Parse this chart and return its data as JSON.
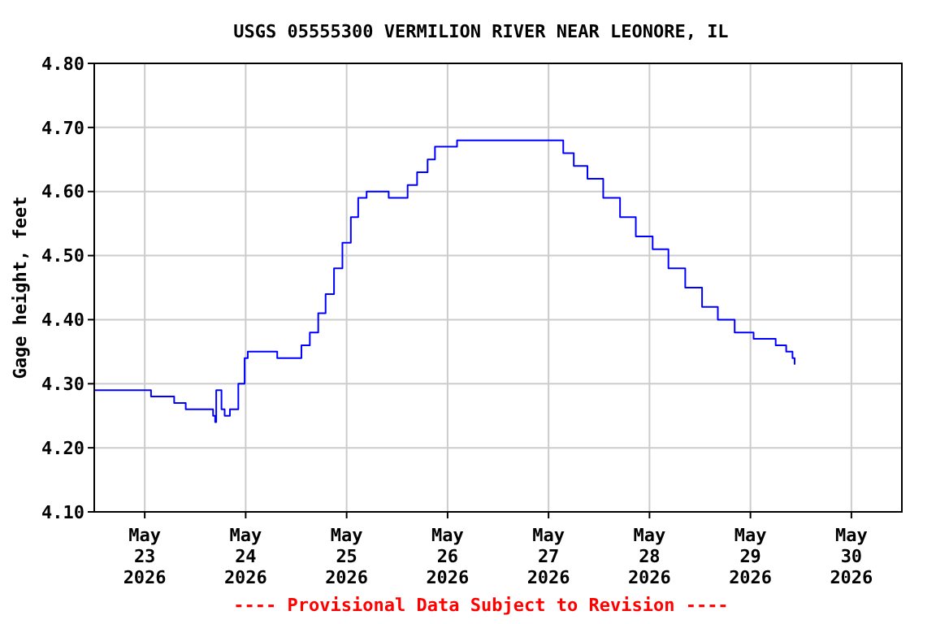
{
  "chart_data": {
    "type": "step",
    "title": "USGS 05555300 VERMILION RIVER NEAR LEONORE, IL",
    "ylabel": "Gage height, feet",
    "annotations": [
      "---- Provisional Data Subject to Revision ----"
    ],
    "x": [
      "2026-05-22T12:00",
      "2026-05-23T01:00",
      "2026-05-23T01:30",
      "2026-05-23T06:00",
      "2026-05-23T07:00",
      "2026-05-23T09:45",
      "2026-05-23T16:15",
      "2026-05-23T16:45",
      "2026-05-23T17:00",
      "2026-05-23T18:15",
      "2026-05-23T19:00",
      "2026-05-23T20:15",
      "2026-05-23T22:15",
      "2026-05-23T23:45",
      "2026-05-24T00:30",
      "2026-05-24T06:15",
      "2026-05-24T07:30",
      "2026-05-24T11:15",
      "2026-05-24T13:15",
      "2026-05-24T15:15",
      "2026-05-24T17:15",
      "2026-05-24T19:00",
      "2026-05-24T21:00",
      "2026-05-24T23:00",
      "2026-05-25T01:00",
      "2026-05-25T02:45",
      "2026-05-25T04:45",
      "2026-05-25T09:00",
      "2026-05-25T10:00",
      "2026-05-25T13:00",
      "2026-05-25T14:30",
      "2026-05-25T16:45",
      "2026-05-25T19:15",
      "2026-05-25T21:00",
      "2026-05-26T00:15",
      "2026-05-26T02:15",
      "2026-05-26T12:15",
      "2026-05-27T01:30",
      "2026-05-27T03:30",
      "2026-05-27T06:00",
      "2026-05-27T09:15",
      "2026-05-27T13:00",
      "2026-05-27T17:00",
      "2026-05-27T20:45",
      "2026-05-28T00:45",
      "2026-05-28T04:30",
      "2026-05-28T08:30",
      "2026-05-28T12:30",
      "2026-05-28T16:15",
      "2026-05-28T20:15",
      "2026-05-29T00:45",
      "2026-05-29T06:00",
      "2026-05-29T08:30",
      "2026-05-29T10:00",
      "2026-05-29T10:30"
    ],
    "series": [
      {
        "color": "#0000ff",
        "values": [
          4.29,
          4.29,
          4.28,
          4.28,
          4.27,
          4.26,
          4.25,
          4.24,
          4.29,
          4.26,
          4.25,
          4.26,
          4.3,
          4.34,
          4.35,
          4.35,
          4.34,
          4.34,
          4.36,
          4.38,
          4.41,
          4.44,
          4.48,
          4.52,
          4.56,
          4.59,
          4.6,
          4.6,
          4.59,
          4.59,
          4.61,
          4.63,
          4.65,
          4.67,
          4.67,
          4.68,
          4.68,
          4.68,
          4.66,
          4.64,
          4.62,
          4.59,
          4.56,
          4.53,
          4.51,
          4.48,
          4.45,
          4.42,
          4.4,
          4.38,
          4.37,
          4.36,
          4.35,
          4.34,
          4.33
        ]
      }
    ],
    "xlim": [
      "2026-05-22T12:00",
      "2026-05-30T12:00"
    ],
    "xticks": [
      {
        "value": "2026-05-23",
        "label": "May\n23\n2026"
      },
      {
        "value": "2026-05-24",
        "label": "May\n24\n2026"
      },
      {
        "value": "2026-05-25",
        "label": "May\n25\n2026"
      },
      {
        "value": "2026-05-26",
        "label": "May\n26\n2026"
      },
      {
        "value": "2026-05-27",
        "label": "May\n27\n2026"
      },
      {
        "value": "2026-05-28",
        "label": "May\n28\n2026"
      },
      {
        "value": "2026-05-29",
        "label": "May\n29\n2026"
      },
      {
        "value": "2026-05-30",
        "label": "May\n30\n2026"
      }
    ],
    "ylim": [
      4.1,
      4.8
    ],
    "yticks": [
      {
        "value": 4.1,
        "label": "4.10"
      },
      {
        "value": 4.2,
        "label": "4.20"
      },
      {
        "value": 4.3,
        "label": "4.30"
      },
      {
        "value": 4.4,
        "label": "4.40"
      },
      {
        "value": 4.5,
        "label": "4.50"
      },
      {
        "value": 4.6,
        "label": "4.60"
      },
      {
        "value": 4.7,
        "label": "4.70"
      },
      {
        "value": 4.8,
        "label": "4.80"
      }
    ],
    "grid": true,
    "line_style": "solid"
  }
}
